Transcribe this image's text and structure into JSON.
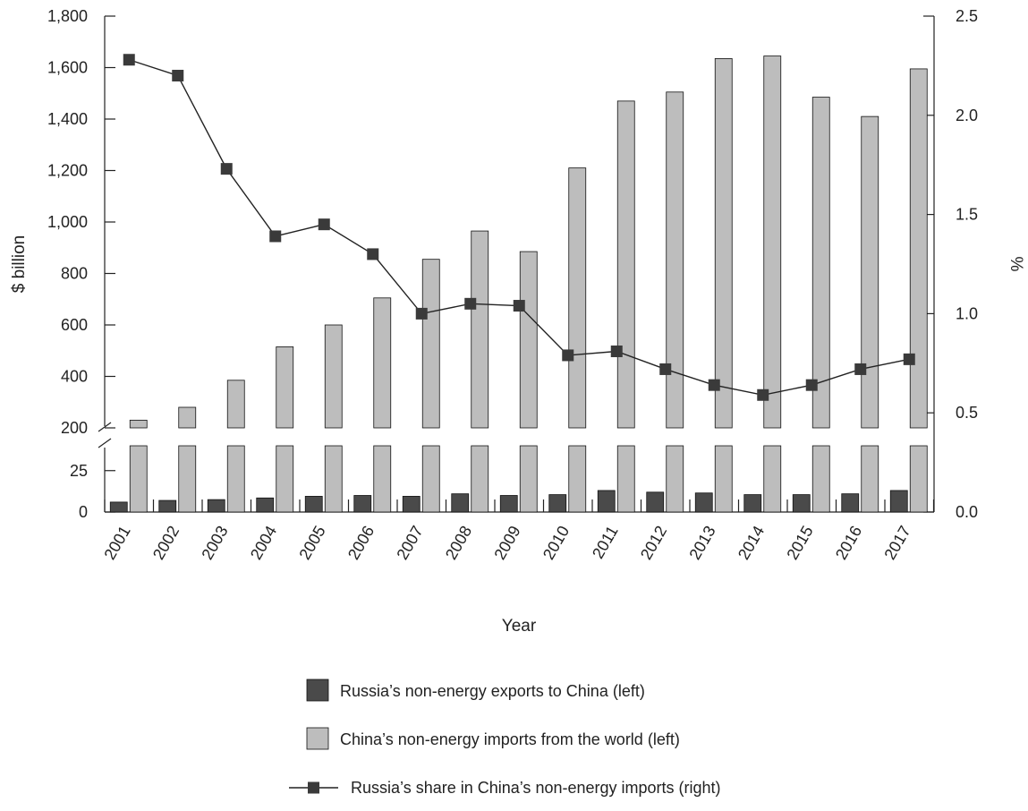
{
  "chart_data": {
    "type": "bar",
    "categories": [
      "2001",
      "2002",
      "2003",
      "2004",
      "2005",
      "2006",
      "2007",
      "2008",
      "2009",
      "2010",
      "2011",
      "2012",
      "2013",
      "2014",
      "2015",
      "2016",
      "2017"
    ],
    "xlabel": "Year",
    "ylabel_left": "$ billion",
    "ylabel_right": "%",
    "left_axis": {
      "upper_segment": {
        "range": [
          200,
          1800
        ],
        "ticks": [
          200,
          400,
          600,
          800,
          1000,
          1200,
          1400,
          1600,
          1800
        ]
      },
      "lower_segment": {
        "range": [
          0,
          40
        ],
        "ticks": [
          0,
          25
        ]
      },
      "axis_break_between_segments": true
    },
    "right_axis": {
      "range": [
        0,
        2.5
      ],
      "ticks": [
        "0.0",
        "0.5",
        "1.0",
        "1.5",
        "2.0",
        "2.5"
      ]
    },
    "tick_labels_left": [
      "1,800",
      "1,600",
      "1,400",
      "1,200",
      "1,000",
      "800",
      "600",
      "400",
      "200",
      "25",
      "0"
    ],
    "series": [
      {
        "name": "Russia’s non-energy exports to China (left)",
        "kind": "bar",
        "axis": "left",
        "color": "#4a4a4a",
        "values": [
          6,
          7,
          7.5,
          8.5,
          9.5,
          10,
          9.5,
          11,
          10,
          10.5,
          13,
          12,
          11.5,
          10.5,
          10.5,
          11,
          13
        ]
      },
      {
        "name": "China’s non-energy imports from the world (left)",
        "kind": "bar",
        "axis": "left",
        "color": "#bdbdbd",
        "values": [
          230,
          280,
          385,
          515,
          600,
          705,
          855,
          965,
          885,
          1210,
          1470,
          1505,
          1635,
          1645,
          1485,
          1410,
          1595
        ]
      },
      {
        "name": "Russia’s share in China’s non-energy imports (right)",
        "kind": "line",
        "axis": "right",
        "color": "#3a3a3a",
        "values": [
          2.28,
          2.2,
          1.73,
          1.39,
          1.45,
          1.3,
          1.0,
          1.05,
          1.04,
          0.79,
          0.81,
          0.72,
          0.64,
          0.59,
          0.64,
          0.72,
          0.77
        ]
      }
    ],
    "legend_position": "bottom",
    "grid": false
  }
}
